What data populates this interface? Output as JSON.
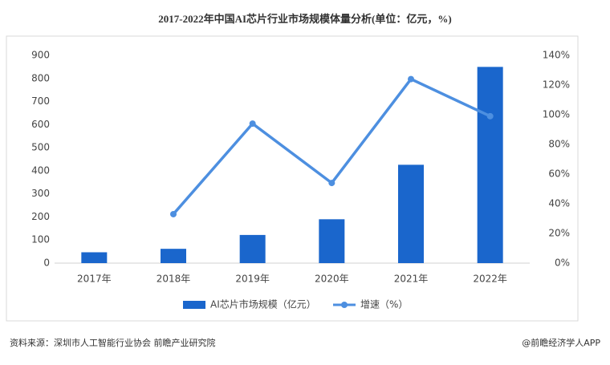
{
  "chart_data": {
    "type": "bar",
    "title": "2017-2022年中国AI芯片行业市场规模体量分析(单位：亿元，%)",
    "categories": [
      "2017年",
      "2018年",
      "2019年",
      "2020年",
      "2021年",
      "2022年"
    ],
    "series": [
      {
        "name": "AI芯片市场规模（亿元）",
        "type": "bar",
        "color": "#1a66cc",
        "values": [
          47,
          62,
          122,
          190,
          426,
          850
        ]
      },
      {
        "name": "增速（%）",
        "type": "line",
        "axis": "y2",
        "color": "#4d8fe0",
        "values": [
          null,
          33,
          94,
          54,
          124,
          99
        ]
      }
    ],
    "ylim": [
      0,
      900
    ],
    "yticks": [
      0,
      100,
      200,
      300,
      400,
      500,
      600,
      700,
      800,
      900
    ],
    "y2lim": [
      0,
      140
    ],
    "y2ticks": [
      {
        "value": 0,
        "label": "0%"
      },
      {
        "value": 20,
        "label": "20%"
      },
      {
        "value": 40,
        "label": "40%"
      },
      {
        "value": 60,
        "label": "60%"
      },
      {
        "value": 80,
        "label": "80%"
      },
      {
        "value": 100,
        "label": "100%"
      },
      {
        "value": 120,
        "label": "120%"
      },
      {
        "value": 140,
        "label": "140%"
      }
    ],
    "legend": "bottom",
    "source": "资料来源：深圳市人工智能行业协会 前瞻产业研究院",
    "credit": "@前瞻经济学人APP"
  }
}
